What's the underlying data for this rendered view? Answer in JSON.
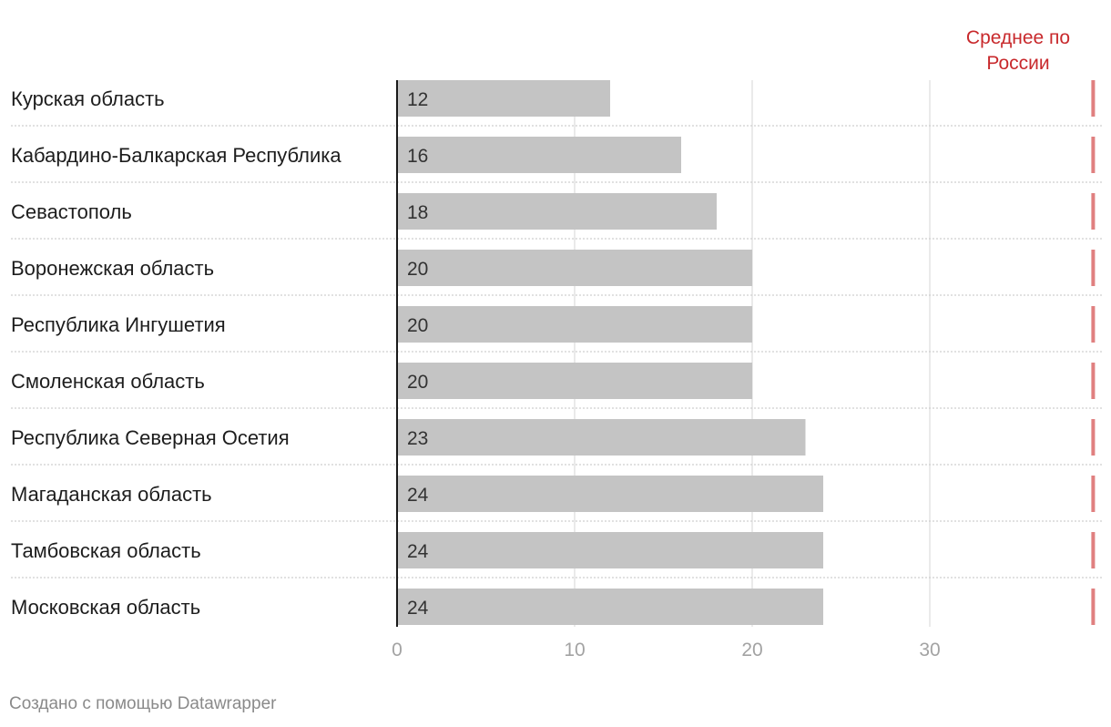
{
  "chart_data": {
    "type": "bar",
    "orientation": "horizontal",
    "categories": [
      "Курская область",
      "Кабардино-Балкарская Республика",
      "Севастополь",
      "Воронежская область",
      "Республика Ингушетия",
      "Смоленская область",
      "Республика Северная Осетия",
      "Магаданская область",
      "Тамбовская область",
      "Московская область"
    ],
    "values": [
      12,
      16,
      18,
      20,
      20,
      20,
      23,
      24,
      24,
      24
    ],
    "xlim": [
      0,
      39
    ],
    "xticks": [
      0,
      10,
      20,
      30
    ],
    "grid": true,
    "reference_line": {
      "value": 39.2,
      "label_lines": [
        "Среднее по",
        "России"
      ]
    }
  },
  "colors": {
    "bar": "#c4c4c4",
    "reference": "#e08080",
    "reference_text": "#c8292c",
    "grid": "#e4e4e4",
    "axis": "#1a1a1a",
    "separator": "#cfcfcf"
  },
  "footer": {
    "prefix": "Создано с помощью ",
    "link": "Datawrapper"
  }
}
